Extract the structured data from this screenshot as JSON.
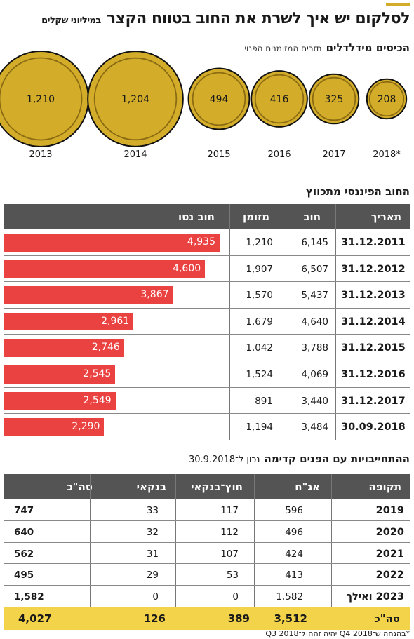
{
  "title": "לסלקום יש איך לשרת את החוב בטווח הקצר",
  "title_unit": "במיליוני שקלים",
  "coins_section": {
    "title": "הכיסים מידלדלים",
    "note": "תזרים המזומנים הפנוי"
  },
  "chart_data": {
    "type": "bubble",
    "title": "הכיסים מידלדלים",
    "subtitle": "תזרים המזומנים הפנוי",
    "categories": [
      "2013",
      "2014",
      "2015",
      "2016",
      "2017",
      "2018*"
    ],
    "values": [
      1210,
      1204,
      494,
      416,
      325,
      208
    ],
    "value_labels": [
      "1,210",
      "1,204",
      "494",
      "416",
      "325",
      "208"
    ]
  },
  "debt_table": {
    "title": "החוב הפיננסי מתכווץ",
    "columns": [
      "תאריך",
      "חוב",
      "מזומן",
      "חוב נטו"
    ],
    "rows": [
      {
        "date": "31.12.2011",
        "debt": "6,145",
        "cash": "1,210",
        "net": "4,935",
        "net_value": 4935
      },
      {
        "date": "31.12.2012",
        "debt": "6,507",
        "cash": "1,907",
        "net": "4,600",
        "net_value": 4600
      },
      {
        "date": "31.12.2013",
        "debt": "5,437",
        "cash": "1,570",
        "net": "3,867",
        "net_value": 3867
      },
      {
        "date": "31.12.2014",
        "debt": "4,640",
        "cash": "1,679",
        "net": "2,961",
        "net_value": 2961
      },
      {
        "date": "31.12.2015",
        "debt": "3,788",
        "cash": "1,042",
        "net": "2,746",
        "net_value": 2746
      },
      {
        "date": "31.12.2016",
        "debt": "4,069",
        "cash": "1,524",
        "net": "2,545",
        "net_value": 2545
      },
      {
        "date": "31.12.2017",
        "debt": "3,440",
        "cash": "891",
        "net": "2,549",
        "net_value": 2549
      },
      {
        "date": "30.09.2018",
        "debt": "3,484",
        "cash": "1,194",
        "net": "2,290",
        "net_value": 2290
      }
    ]
  },
  "obligations_table": {
    "title": "ההתחייבויות עם הפנים קדימה",
    "note": "נכון ל־30.9.2018",
    "columns": [
      "תקופה",
      "אג\"ח",
      "חוץ־בנקאי",
      "בנקאי",
      "סה\"כ"
    ],
    "rows": [
      {
        "period": "2019",
        "bonds": "596",
        "nonbank": "117",
        "bank": "33",
        "total": "747"
      },
      {
        "period": "2020",
        "bonds": "496",
        "nonbank": "112",
        "bank": "32",
        "total": "640"
      },
      {
        "period": "2021",
        "bonds": "424",
        "nonbank": "107",
        "bank": "31",
        "total": "562"
      },
      {
        "period": "2022",
        "bonds": "413",
        "nonbank": "53",
        "bank": "29",
        "total": "495"
      },
      {
        "period": "2023 ואילך",
        "bonds": "1,582",
        "nonbank": "0",
        "bank": "0",
        "total": "1,582"
      }
    ],
    "total_row": {
      "period": "סה\"כ",
      "bonds": "3,512",
      "nonbank": "389",
      "bank": "126",
      "total": "4,027"
    }
  },
  "footnote": "*בהנחה ש־Q4 2018 יהיה זהה ל־Q3 2018",
  "colors": {
    "gold": "#d3ad2a",
    "gold_dark": "#8a6a12",
    "bar_red": "#ea4240",
    "header_gray": "#545454",
    "total_yellow": "#f3d34a"
  }
}
